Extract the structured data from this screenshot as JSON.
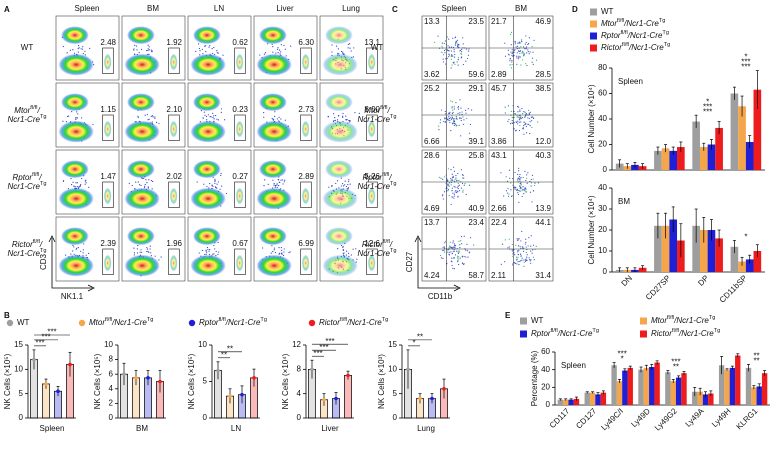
{
  "panel_labels": [
    "A",
    "B",
    "C",
    "D",
    "E"
  ],
  "genotypes": [
    [
      "WT"
    ],
    [
      "Mtor",
      "fl/fl",
      "/",
      "Ncr1-Cre",
      "Tg"
    ],
    [
      "Rptor",
      "fl/fl",
      "/",
      "Ncr1-Cre",
      "Tg"
    ],
    [
      "Rictor",
      "fl/fl",
      "/",
      "Ncr1-Cre",
      "Tg"
    ]
  ],
  "colors": [
    "#9e9e9e",
    "#f5a54a",
    "#1f1fd6",
    "#ee1c1c"
  ],
  "flow_A": {
    "columns": [
      "Spleen",
      "BM",
      "LN",
      "Liver",
      "Lung"
    ],
    "rows": [
      [
        "2.48",
        "1.92",
        "0.62",
        "6.30",
        "13.1"
      ],
      [
        "1.15",
        "2.10",
        "0.23",
        "2.73",
        "8.00"
      ],
      [
        "1.47",
        "2.02",
        "0.27",
        "2.89",
        "5.26"
      ],
      [
        "2.39",
        "1.96",
        "0.67",
        "6.99",
        "12.6"
      ]
    ],
    "y_axis": "CD3",
    "x_axis": "NK1.1"
  },
  "flow_C": {
    "columns": [
      "Spleen",
      "BM"
    ],
    "rows": [
      [
        [
          "13.3",
          "23.5",
          "3.62",
          "59.6"
        ],
        [
          "21.7",
          "46.9",
          "2.89",
          "28.5"
        ]
      ],
      [
        [
          "25.2",
          "29.1",
          "6.66",
          "39.1"
        ],
        [
          "45.7",
          "38.5",
          "3.86",
          "12.0"
        ]
      ],
      [
        [
          "28.6",
          "25.8",
          "4.69",
          "40.9"
        ],
        [
          "43.1",
          "40.3",
          "2.66",
          "13.9"
        ]
      ],
      [
        [
          "13.7",
          "23.4",
          "4.24",
          "58.7"
        ],
        [
          "22.4",
          "44.1",
          "2.11",
          "31.4"
        ]
      ]
    ],
    "y_axis": "CD27",
    "x_axis": "CD11b"
  },
  "chart_data": [
    {
      "type": "bar",
      "xlabel": "Spleen",
      "ylabel": "NK Cells (×10⁵)",
      "values": [
        12,
        7,
        5.5,
        11
      ],
      "errors": [
        2,
        1,
        1,
        2.5
      ],
      "ylim": [
        0,
        15
      ],
      "yticks": [
        0,
        5,
        10,
        15
      ],
      "annotations": [
        "***",
        "***",
        "***"
      ]
    },
    {
      "type": "bar",
      "xlabel": "BM",
      "ylabel": "NK Cells (×10⁵)",
      "values": [
        6,
        5.5,
        5.5,
        5
      ],
      "errors": [
        1.5,
        1,
        1,
        1.5
      ],
      "ylim": [
        0,
        10
      ],
      "yticks": [
        0,
        2,
        4,
        6,
        8,
        10
      ],
      "annotations": []
    },
    {
      "type": "bar",
      "xlabel": "LN",
      "ylabel": "NK Cells (×10⁵)",
      "values": [
        6.5,
        3,
        3.2,
        5.5
      ],
      "errors": [
        1.2,
        1,
        1.2,
        1.2
      ],
      "ylim": [
        0,
        10
      ],
      "yticks": [
        0,
        5,
        10
      ],
      "annotations": [
        "**",
        "**"
      ]
    },
    {
      "type": "bar",
      "xlabel": "Liver",
      "ylabel": "NK Cells (×10⁴)",
      "values": [
        8,
        3,
        3.2,
        7
      ],
      "errors": [
        1.5,
        1,
        1,
        0.7
      ],
      "ylim": [
        0,
        12
      ],
      "yticks": [
        0,
        4,
        8,
        12
      ],
      "annotations": [
        "***",
        "***",
        "***"
      ]
    },
    {
      "type": "bar",
      "xlabel": "Lung",
      "ylabel": "NK Cells (×10³)",
      "values": [
        10,
        4,
        4,
        6
      ],
      "errors": [
        4,
        1,
        1,
        2
      ],
      "ylim": [
        0,
        15
      ],
      "yticks": [
        0,
        5,
        10,
        15
      ],
      "annotations": [
        "*",
        "**"
      ]
    },
    {
      "type": "grouped_bar",
      "categories": [
        "DN",
        "CD27SP",
        "DP",
        "CD11bSP"
      ],
      "panels": [
        {
          "title": "Spleen",
          "ylabel": "Cell Number (×10⁴)",
          "ylim": [
            0,
            80
          ],
          "yticks": [
            0,
            20,
            40,
            60,
            80
          ],
          "series": [
            {
              "values": [
                5,
                15,
                38,
                60
              ],
              "errors": [
                3,
                3,
                5,
                5
              ]
            },
            {
              "values": [
                3,
                17,
                18,
                50
              ],
              "errors": [
                2,
                3,
                3,
                8
              ]
            },
            {
              "values": [
                4,
                15,
                20,
                22
              ],
              "errors": [
                2,
                3,
                4,
                5
              ]
            },
            {
              "values": [
                3,
                18,
                33,
                63
              ],
              "errors": [
                2,
                4,
                5,
                15
              ]
            }
          ],
          "annotations": [
            {
              "category": "DP",
              "text": "***"
            },
            {
              "category": "DP",
              "text": "***"
            },
            {
              "category": "DP",
              "text": "*"
            },
            {
              "category": "CD11bSP",
              "text": "***"
            },
            {
              "category": "CD11bSP",
              "text": "***"
            },
            {
              "category": "CD11bSP",
              "text": "*"
            }
          ]
        },
        {
          "title": "BM",
          "ylabel": "Cell Number (×10⁴)",
          "ylim": [
            0,
            40
          ],
          "yticks": [
            0,
            10,
            20,
            30,
            40
          ],
          "series": [
            {
              "values": [
                1,
                22,
                22,
                12
              ],
              "errors": [
                1,
                6,
                8,
                3
              ]
            },
            {
              "values": [
                1,
                22,
                20,
                5
              ],
              "errors": [
                1,
                6,
                6,
                2
              ]
            },
            {
              "values": [
                1,
                25,
                20,
                6
              ],
              "errors": [
                1,
                6,
                5,
                2
              ]
            },
            {
              "values": [
                2,
                15,
                16,
                10
              ],
              "errors": [
                1,
                8,
                4,
                3
              ]
            }
          ],
          "annotations": [
            {
              "category": "CD11bSP",
              "text": "*"
            }
          ]
        }
      ]
    },
    {
      "type": "grouped_bar",
      "categories": [
        "CD117",
        "CD127",
        "Ly49C/I",
        "Ly49D",
        "Ly49G2",
        "Ly49A",
        "Ly49H",
        "KLRG1"
      ],
      "panels": [
        {
          "title": "Spleen",
          "ylabel": "Percentage (%)",
          "ylim": [
            0,
            60
          ],
          "yticks": [
            0,
            20,
            40,
            60
          ],
          "series": [
            {
              "values": [
                6,
                14,
                45,
                40,
                37,
                15,
                45,
                42
              ],
              "errors": [
                1,
                1,
                3,
                3,
                2,
                5,
                10,
                4
              ]
            },
            {
              "values": [
                6,
                14,
                27,
                42,
                27,
                15,
                40,
                20
              ],
              "errors": [
                1,
                1,
                2,
                3,
                2,
                4,
                1,
                2
              ]
            },
            {
              "values": [
                6,
                12,
                39,
                43,
                31,
                12,
                42,
                21
              ],
              "errors": [
                1,
                2,
                2,
                3,
                2,
                3,
                2,
                3
              ]
            },
            {
              "values": [
                7,
                14,
                42,
                48,
                36,
                13,
                56,
                36
              ],
              "errors": [
                2,
                2,
                2,
                2,
                2,
                3,
                2,
                3
              ]
            }
          ],
          "annotations": [
            {
              "category": "Ly49C/I",
              "text": "*"
            },
            {
              "category": "Ly49C/I",
              "text": "***"
            },
            {
              "category": "Ly49G2",
              "text": "**"
            },
            {
              "category": "Ly49G2",
              "text": "***"
            },
            {
              "category": "KLRG1",
              "text": "**"
            },
            {
              "category": "KLRG1",
              "text": "**"
            }
          ]
        }
      ]
    }
  ]
}
